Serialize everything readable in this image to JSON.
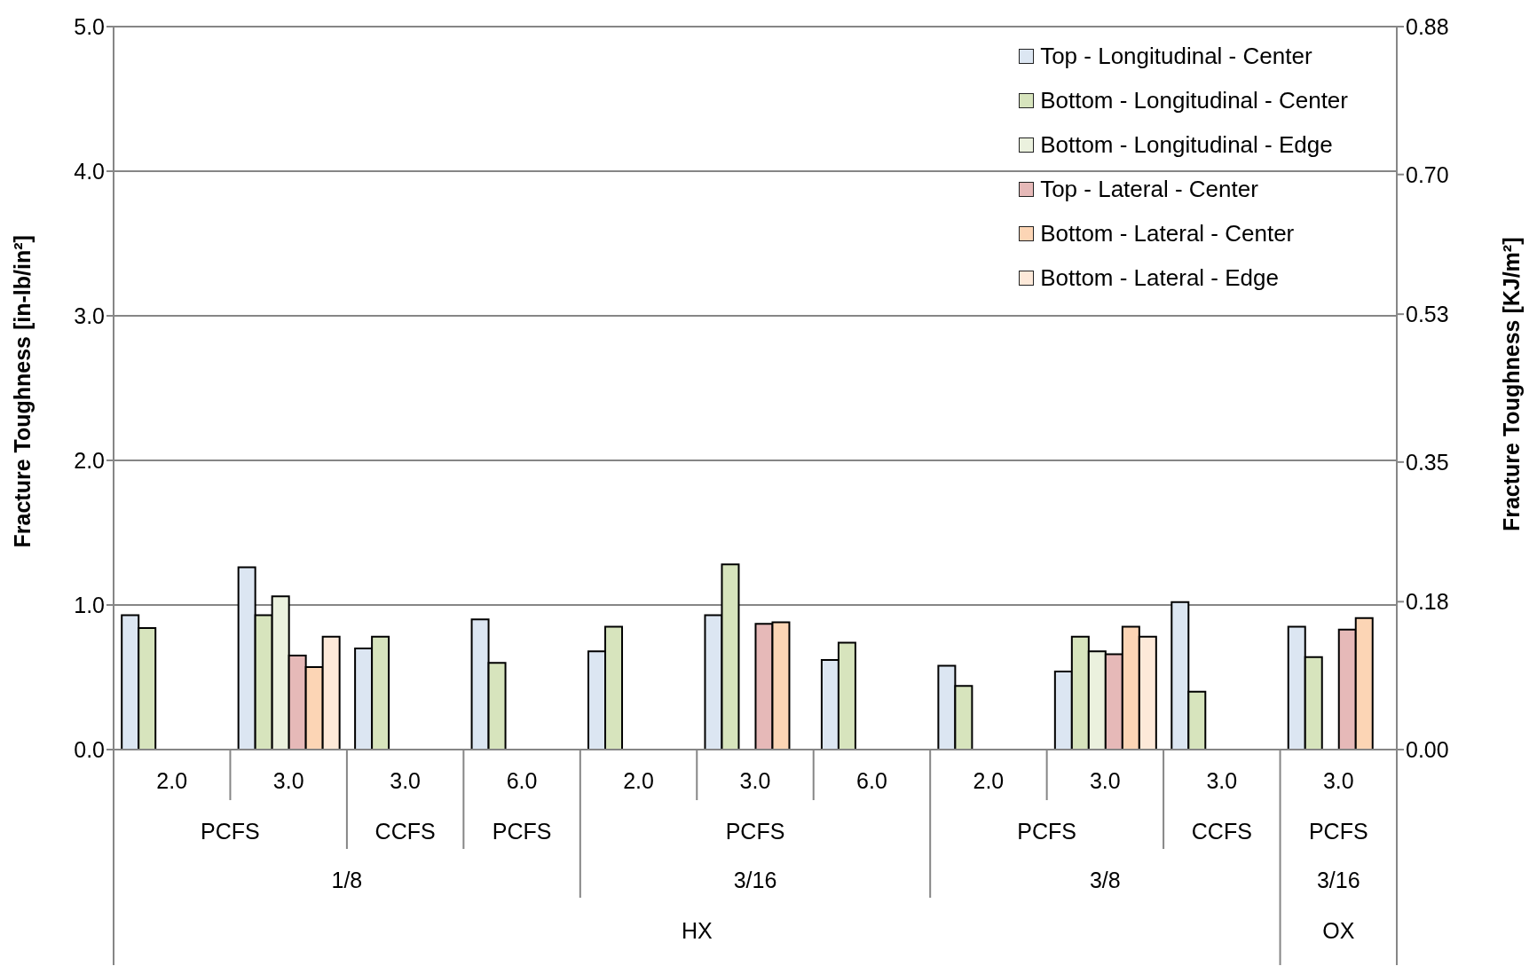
{
  "chart_data": {
    "type": "bar",
    "ylabel": "Fracture Toughness [in-lb/in²]",
    "y2label": "Fracture Toughness [KJ/m²]",
    "categories": [
      "2.0",
      "3.0",
      "3.0",
      "6.0",
      "2.0",
      "3.0",
      "6.0",
      "2.0",
      "3.0",
      "3.0",
      "3.0"
    ],
    "series": [
      {
        "name": "Top - Longitudinal - Center",
        "color": "#dce6f2",
        "values": [
          0.93,
          1.26,
          0.7,
          0.9,
          0.68,
          0.93,
          0.62,
          0.58,
          0.54,
          1.02,
          0.85
        ]
      },
      {
        "name": "Bottom - Longitudinal - Center",
        "color": "#d7e4bd",
        "values": [
          0.84,
          0.93,
          0.78,
          0.6,
          0.85,
          1.28,
          0.74,
          0.44,
          0.78,
          0.4,
          0.64
        ]
      },
      {
        "name": "Bottom - Longitudinal - Edge",
        "color": "#ebf1de",
        "values": [
          null,
          1.06,
          null,
          null,
          null,
          null,
          null,
          null,
          0.68,
          null,
          null
        ]
      },
      {
        "name": "Top - Lateral - Center",
        "color": "#e6b9b8",
        "values": [
          null,
          0.65,
          null,
          null,
          null,
          0.87,
          null,
          null,
          0.66,
          null,
          0.83
        ]
      },
      {
        "name": "Bottom - Lateral - Center",
        "color": "#fcd5b5",
        "values": [
          null,
          0.57,
          null,
          null,
          null,
          0.88,
          null,
          null,
          0.85,
          null,
          0.91
        ]
      },
      {
        "name": "Bottom - Lateral - Edge",
        "color": "#fde9d9",
        "values": [
          null,
          0.78,
          null,
          null,
          null,
          null,
          null,
          null,
          0.78,
          null,
          null
        ]
      }
    ],
    "ylim": [
      0,
      5
    ],
    "yticks": [
      {
        "value": 0,
        "label": "0.0"
      },
      {
        "value": 1,
        "label": "1.0"
      },
      {
        "value": 2,
        "label": "2.0"
      },
      {
        "value": 3,
        "label": "3.0"
      },
      {
        "value": 4,
        "label": "4.0"
      },
      {
        "value": 5,
        "label": "5.0"
      }
    ],
    "y2lim": [
      0,
      0.88
    ],
    "y2ticks": [
      {
        "value": 0,
        "label": "0.00"
      },
      0.18,
      0.35,
      0.53,
      {
        "value": 0.7,
        "label": "0.70"
      },
      0.88
    ],
    "annotations": [
      "PCFS",
      "CCFS",
      "PCFS",
      "PCFS",
      "PCFS",
      "CCFS",
      "PCFS",
      "1/8",
      "3/16",
      "3/8",
      "3/16",
      "HX",
      "OX"
    ],
    "grid": "y",
    "legend": "top right"
  }
}
